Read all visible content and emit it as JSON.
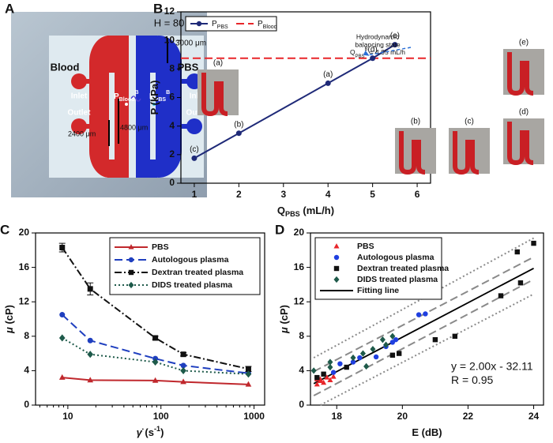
{
  "panel_a": {
    "label": "A",
    "height_note": "H = 80 μm",
    "blood": "Blood",
    "pbs": "PBS",
    "blood_inlet": "Inlet",
    "blood_outlet": "Outlet",
    "pbs_inlet": "Inlet",
    "pbs_outlet": "Outlet",
    "width_top": "3000 μm",
    "dim_short": "2400 μm",
    "dim_long": "4800 μm",
    "p_blood": [
      {
        "text": "P"
      },
      {
        "text": "Blood",
        "sub": true
      },
      {
        "text": "B",
        "sup": true
      }
    ],
    "p_pbs": [
      {
        "text": "P"
      },
      {
        "text": "PBS",
        "sub": true
      },
      {
        "text": "B",
        "sup": true
      }
    ]
  },
  "chart_data": [
    {
      "type": "line",
      "panel_label": "B",
      "x_label": [
        {
          "text": "Q"
        },
        {
          "text": "PBS",
          "sub": true
        },
        {
          "text": " (mL/h)"
        }
      ],
      "y_label": [
        {
          "text": "P (kPa)"
        }
      ],
      "x": [
        1,
        2,
        4,
        5,
        5.5
      ],
      "xlim": [
        0.7,
        6.3
      ],
      "xticks": [
        1,
        2,
        3,
        4,
        5,
        6
      ],
      "ylim": [
        0,
        12
      ],
      "yticks": [
        0,
        2,
        4,
        6,
        8,
        10,
        12
      ],
      "series": [
        {
          "name": [
            {
              "text": "P"
            },
            {
              "text": "PBS",
              "sub": true
            }
          ],
          "color": "#1f2a78",
          "marker": "circle",
          "dash": "solid",
          "values": [
            1.75,
            3.5,
            7.0,
            8.75,
            9.7
          ],
          "point_labels": [
            "(c)",
            "(b)",
            "(a)",
            "(d)",
            "(e)"
          ]
        }
      ],
      "threshold": {
        "name": [
          {
            "text": "P"
          },
          {
            "text": "Blood",
            "sub": true
          }
        ],
        "value": 8.75,
        "color": "#e8262a",
        "dash": "dashed"
      },
      "annotation": {
        "lines": [
          "Hydrodynamic",
          "balancing state"
        ],
        "equation": [
          {
            "text": "Q"
          },
          {
            "text": "PBS",
            "sub": true
          },
          {
            "text": "B",
            "sup": true
          },
          {
            "text": " = 4.95 mL/h"
          }
        ]
      },
      "insets": [
        "(a)",
        "(b)",
        "(c)",
        "(d)",
        "(e)"
      ],
      "legend": "upper left"
    },
    {
      "type": "line",
      "panel_label": "C",
      "x_label": [
        {
          "text": "γ̇",
          "italic": true
        },
        {
          "text": " (s"
        },
        {
          "text": "-1",
          "sup": true
        },
        {
          "text": ")"
        }
      ],
      "y_label": [
        {
          "text": "μ",
          "italic": true
        },
        {
          "text": " (cP)"
        }
      ],
      "xscale": "log",
      "x": [
        8.7,
        17.4,
        87,
        174,
        870
      ],
      "xlim": [
        4.5,
        1300
      ],
      "xticks": [
        10,
        100,
        1000
      ],
      "ylim": [
        0,
        20
      ],
      "yticks": [
        0,
        4,
        8,
        12,
        16,
        20
      ],
      "series": [
        {
          "name": "PBS",
          "color": "#c0282d",
          "marker": "triangle",
          "dash": "solid",
          "values": [
            3.2,
            2.9,
            2.85,
            2.7,
            2.4
          ]
        },
        {
          "name": "Autologous plasma",
          "color": "#1f3fbf",
          "marker": "circle",
          "dash": "dashed",
          "values": [
            10.5,
            7.5,
            5.4,
            4.6,
            3.7
          ]
        },
        {
          "name": "Dextran treated plasma",
          "color": "#111111",
          "marker": "square",
          "dash": "dashdot",
          "values": [
            18.3,
            13.5,
            7.8,
            5.9,
            4.2
          ],
          "errors": [
            0.5,
            0.7,
            0.2,
            0.2,
            0.3
          ]
        },
        {
          "name": "DIDS treated plasma",
          "color": "#1e5a4a",
          "marker": "diamond",
          "dash": "dotted",
          "values": [
            7.8,
            5.9,
            5.0,
            4.0,
            3.6
          ]
        }
      ],
      "legend": "upper right"
    },
    {
      "type": "scatter",
      "panel_label": "D",
      "x_label": [
        {
          "text": "E (dB)"
        }
      ],
      "y_label": [
        {
          "text": "μ",
          "italic": true
        },
        {
          "text": " (cP)"
        }
      ],
      "xlim": [
        17.2,
        24.3
      ],
      "xticks": [
        18,
        20,
        22,
        24
      ],
      "ylim": [
        0,
        20
      ],
      "yticks": [
        0,
        4,
        8,
        12,
        16,
        20
      ],
      "series": [
        {
          "name": "PBS",
          "color": "#e8262a",
          "marker": "triangle",
          "x": [
            17.4,
            17.5,
            17.6,
            17.7,
            17.8,
            17.5,
            17.9,
            17.4
          ],
          "values": [
            2.4,
            3.0,
            2.6,
            3.2,
            2.9,
            2.8,
            3.3,
            3.0
          ]
        },
        {
          "name": "Autologous plasma",
          "color": "#1f3fe0",
          "marker": "circle",
          "x": [
            17.9,
            18.1,
            18.5,
            19.2,
            19.7,
            19.8,
            20.5,
            20.7,
            18.7,
            19.5
          ],
          "values": [
            3.8,
            4.8,
            5.0,
            5.6,
            7.3,
            7.6,
            10.5,
            10.6,
            5.5,
            6.8
          ]
        },
        {
          "name": "Dextran treated plasma",
          "color": "#111111",
          "marker": "square",
          "x": [
            17.4,
            17.6,
            18.3,
            19.7,
            19.9,
            21.0,
            21.6,
            23.0,
            23.6,
            23.5,
            24.0
          ],
          "values": [
            3.2,
            3.6,
            4.4,
            5.8,
            6.0,
            7.6,
            8.0,
            12.7,
            14.2,
            17.8,
            18.8
          ]
        },
        {
          "name": "DIDS treated plasma",
          "color": "#1e5a4a",
          "marker": "diamond",
          "x": [
            17.3,
            17.8,
            18.5,
            18.8,
            19.1,
            19.4,
            19.7,
            19.5,
            18.9,
            17.8
          ],
          "values": [
            4.0,
            5.0,
            5.5,
            6.0,
            6.5,
            7.6,
            8.0,
            7.0,
            4.5,
            4.4
          ]
        }
      ],
      "fit": {
        "name": "Fitting line",
        "color": "#000000",
        "x": [
          17.3,
          24
        ],
        "y": [
          2.49,
          15.89
        ],
        "equation": "y = 2.00x - 32.11",
        "r_text": "R = 0.95"
      },
      "bands": [
        {
          "color": "#8a8a8a",
          "dash": "dashed",
          "x": [
            17.3,
            24
          ],
          "y": [
            3.9,
            17.2
          ]
        },
        {
          "color": "#8a8a8a",
          "dash": "dashed",
          "x": [
            17.3,
            24
          ],
          "y": [
            1.1,
            14.6
          ]
        },
        {
          "color": "#8a8a8a",
          "dash": "dotted",
          "x": [
            17.3,
            24
          ],
          "y": [
            5.5,
            19.4
          ]
        },
        {
          "color": "#8a8a8a",
          "dash": "dotted",
          "x": [
            17.5,
            24
          ],
          "y": [
            0,
            12.9
          ]
        }
      ],
      "legend": "upper left"
    }
  ]
}
